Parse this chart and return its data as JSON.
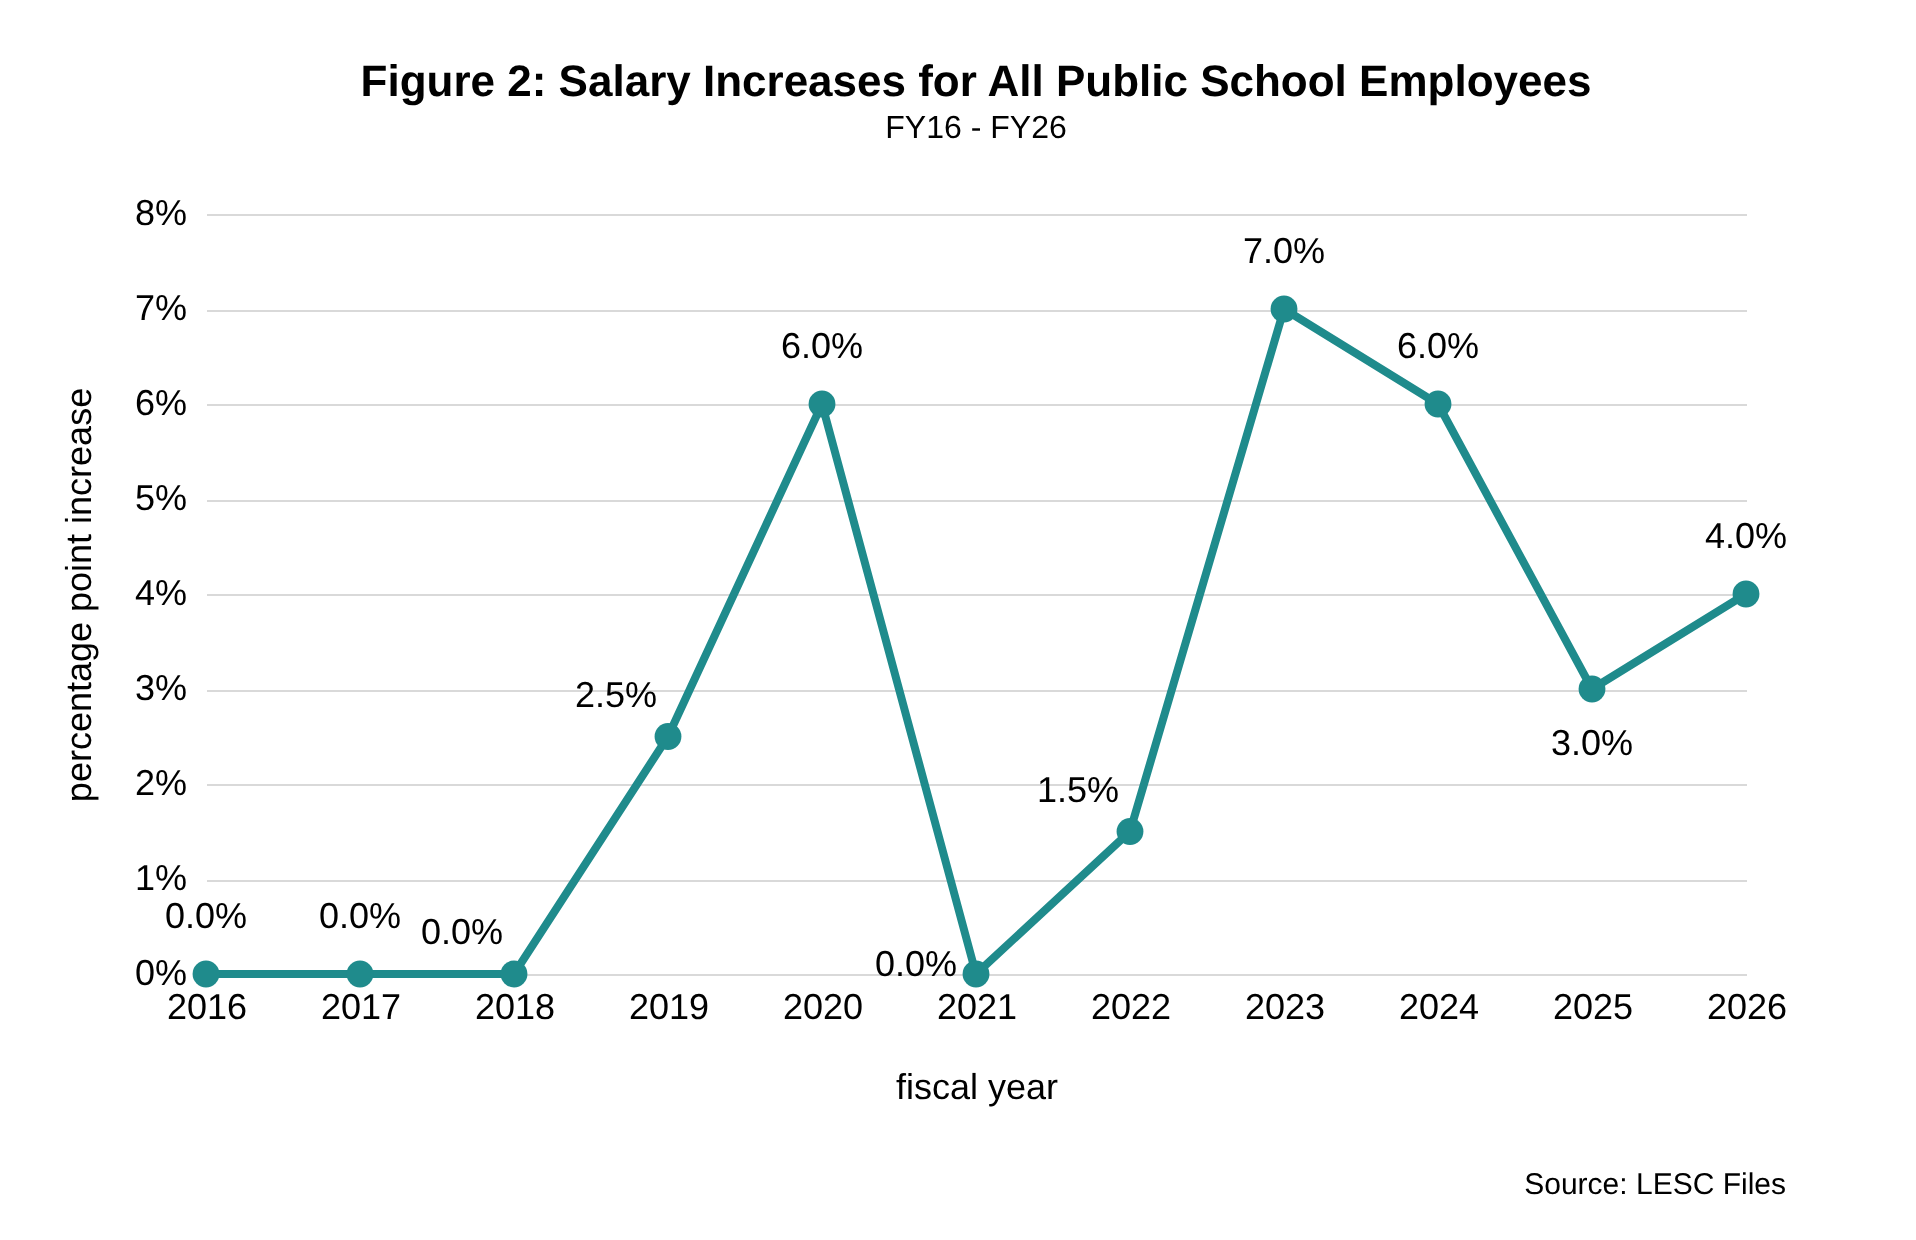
{
  "chart_data": {
    "type": "line",
    "title": "Figure 2: Salary Increases for All Public School Employees",
    "subtitle": "FY16 - FY26",
    "xlabel": "fiscal year",
    "ylabel": "percentage point increase",
    "categories": [
      "2016",
      "2017",
      "2018",
      "2019",
      "2020",
      "2021",
      "2022",
      "2023",
      "2024",
      "2025",
      "2026"
    ],
    "series": [
      {
        "color": "#1f8b8c",
        "values": [
          0,
          0,
          0,
          2.5,
          6,
          0,
          1.5,
          7,
          6,
          3,
          4
        ],
        "value_labels": [
          "0.0%",
          "0.0%",
          "0.0%",
          "2.5%",
          "6.0%",
          "0.0%",
          "1.5%",
          "7.0%",
          "6.0%",
          "3.0%",
          "4.0%"
        ]
      }
    ],
    "ylim": [
      0,
      8
    ],
    "yticks": [
      {
        "value": 0,
        "label": "0%"
      },
      {
        "value": 1,
        "label": "1%"
      },
      {
        "value": 2,
        "label": "2%"
      },
      {
        "value": 3,
        "label": "3%"
      },
      {
        "value": 4,
        "label": "4%"
      },
      {
        "value": 5,
        "label": "5%"
      },
      {
        "value": 6,
        "label": "6%"
      },
      {
        "value": 7,
        "label": "7%"
      },
      {
        "value": 8,
        "label": "8%"
      }
    ],
    "grid": "y",
    "marker": "circle",
    "line_style": "solid",
    "annotations": [
      "Source: LESC Files"
    ]
  }
}
